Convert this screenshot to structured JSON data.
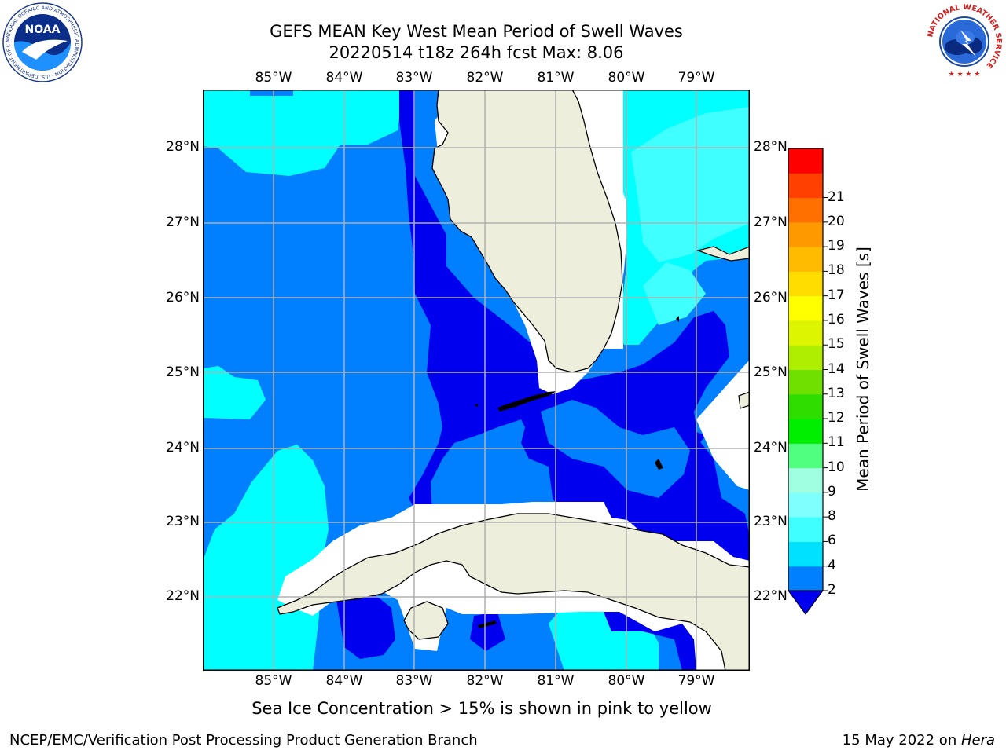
{
  "header": {
    "title_line1": "GEFS MEAN Key West Mean Period of Swell Waves",
    "title_line2": "20220514 t18z 264h fcst   Max: 8.06"
  },
  "logos": {
    "noaa_text": "NOAA",
    "noaa_ring_text": "NATIONAL OCEANIC AND ATMOSPHERIC ADMINISTRATION · U.S. DEPARTMENT OF COMMERCE",
    "nws_ring_text": "NATIONAL WEATHER SERVICE"
  },
  "map": {
    "lon_labels": [
      "85°W",
      "84°W",
      "83°W",
      "82°W",
      "81°W",
      "80°W",
      "79°W"
    ],
    "lat_labels": [
      "28°N",
      "27°N",
      "26°N",
      "25°N",
      "24°N",
      "23°N",
      "22°N"
    ],
    "extent": {
      "lon_min": -86.0,
      "lon_max": -78.3,
      "lat_min": 21.0,
      "lat_max": 28.8
    },
    "colors": {
      "land": "#eeeedd",
      "mask": "#ffffff",
      "grid": "#b0b0b0",
      "coast": "#000000"
    }
  },
  "colorbar": {
    "label": "Mean Period of Swell Waves [s]",
    "ticks": [
      "2",
      "4",
      "6",
      "8",
      "9",
      "10",
      "11",
      "12",
      "13",
      "14",
      "15",
      "16",
      "17",
      "18",
      "19",
      "20",
      "21"
    ],
    "colors": [
      "#0080ff",
      "#00e0ff",
      "#40ffff",
      "#80ffff",
      "#a0ffe0",
      "#50ff80",
      "#00ee00",
      "#30dd00",
      "#70e000",
      "#b0ee00",
      "#ddf500",
      "#ffff00",
      "#ffdd00",
      "#ffbb00",
      "#ff9900",
      "#ff7000",
      "#ff4000",
      "#ff0000"
    ],
    "under_color": "#0000ee"
  },
  "subtitle": "Sea Ice Concentration > 15% is shown in pink to yellow",
  "footer": {
    "left": "NCEP/EMC/Verification Post Processing Product Generation Branch",
    "right_prefix": "15 May 2022 on ",
    "right_host": "Hera"
  }
}
